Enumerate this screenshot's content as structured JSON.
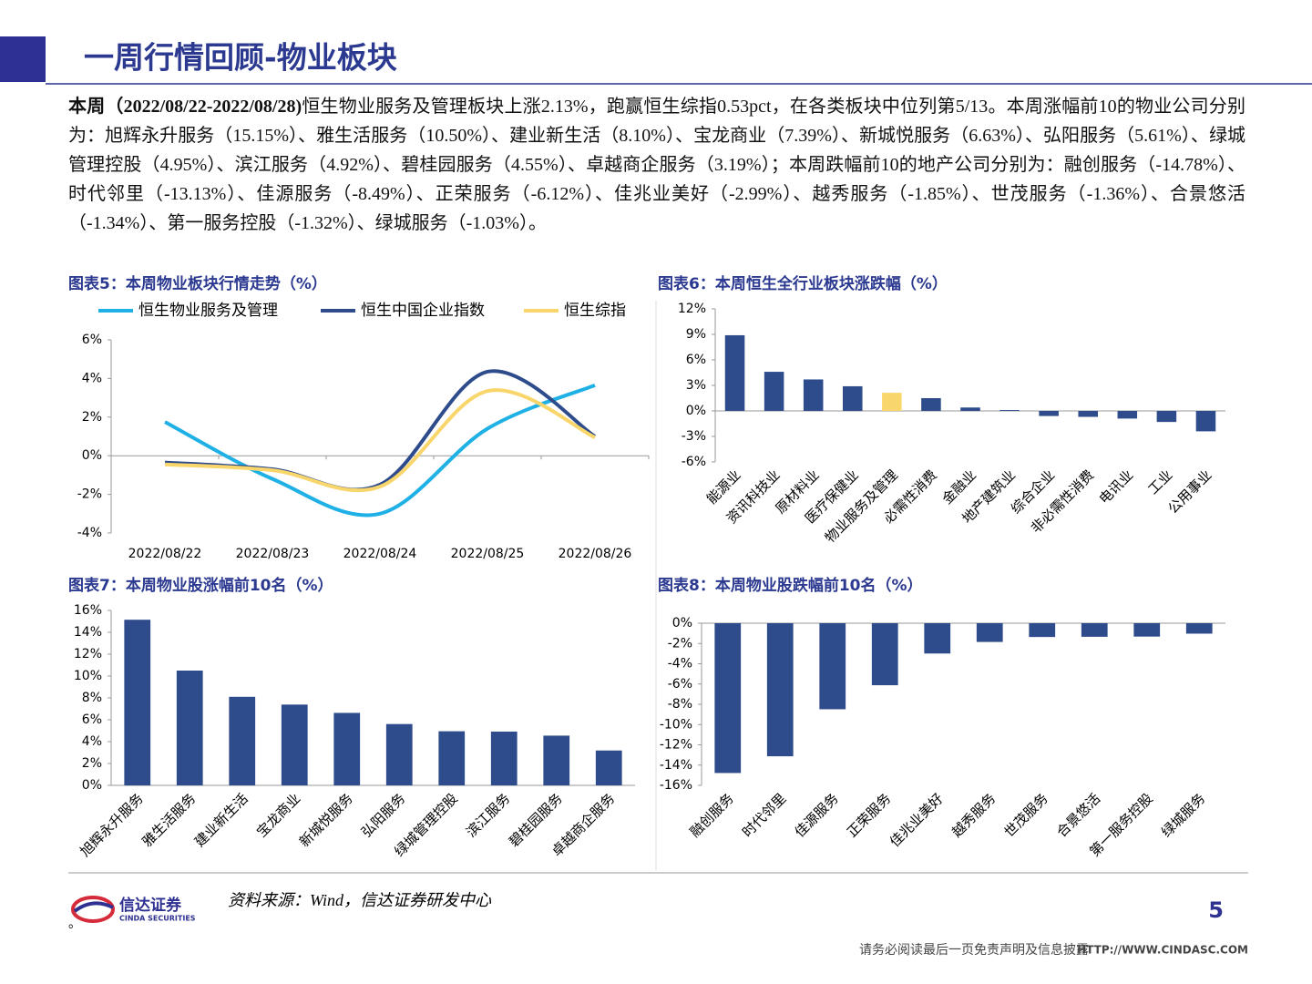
{
  "header": {
    "title": "一周行情回顾-物业板块"
  },
  "paragraph": {
    "lead": "本周（2022/08/22-2022/08/28)",
    "text": "恒生物业服务及管理板块上涨2.13%，跑赢恒生综指0.53pct，在各类板块中位列第5/13。本周涨幅前10的物业公司分别为：旭辉永升服务（15.15%）、雅生活服务（10.50%）、建业新生活（8.10%）、宝龙商业（7.39%）、新城悦服务（6.63%）、弘阳服务（5.61%）、绿城管理控股（4.95%）、滨江服务（4.92%）、碧桂园服务（4.55%）、卓越商企服务（3.19%）；本周跌幅前10的地产公司分别为：融创服务（-14.78%）、时代邻里（-13.13%）、佳源服务（-8.49%）、正荣服务（-6.12%）、佳兆业美好（-2.99%）、越秀服务（-1.85%）、世茂服务（-1.36%）、合景悠活（-1.34%）、第一服务控股（-1.32%）、绿城服务（-1.03%）。"
  },
  "chart_data": [
    {
      "type": "line",
      "title": "图表5：本周物业板块行情走势（%）",
      "categories": [
        "2022/08/22",
        "2022/08/23",
        "2022/08/24",
        "2022/08/25",
        "2022/08/26"
      ],
      "series": [
        {
          "name": "恒生物业服务及管理",
          "color": "#1fb1e6",
          "values": [
            1.75,
            -1.2,
            -3.0,
            1.4,
            3.65
          ]
        },
        {
          "name": "恒生中国企业指数",
          "color": "#2e4b8b",
          "values": [
            -0.35,
            -0.7,
            -1.5,
            4.35,
            1.0
          ]
        },
        {
          "name": "恒生综指",
          "color": "#f9d66b",
          "values": [
            -0.45,
            -0.75,
            -1.6,
            3.35,
            0.95
          ]
        }
      ],
      "ylim": [
        -4,
        6
      ],
      "yticks": [
        {
          "value": -4,
          "label": "-4%"
        },
        {
          "value": -2,
          "label": "-2%"
        },
        {
          "value": 0,
          "label": "0%"
        },
        {
          "value": 2,
          "label": "2%"
        },
        {
          "value": 4,
          "label": "4%"
        },
        {
          "value": 6,
          "label": "6%"
        }
      ],
      "legend": "top",
      "grid": false
    },
    {
      "type": "bar",
      "title": "图表6：本周恒生全行业板块涨跌幅（%）",
      "categories": [
        "能源业",
        "资讯科技业",
        "原材料业",
        "医疗保健业",
        "物业服务及管理",
        "必需性消费",
        "金融业",
        "地产建筑业",
        "综合企业",
        "非必需性消费",
        "电讯业",
        "工业",
        "公用事业"
      ],
      "values": [
        8.9,
        4.6,
        3.7,
        2.9,
        2.13,
        1.5,
        0.4,
        0.1,
        -0.6,
        -0.7,
        -0.9,
        -1.3,
        -2.4
      ],
      "colors": [
        "#2e4b8b",
        "#2e4b8b",
        "#2e4b8b",
        "#2e4b8b",
        "#f9d66b",
        "#2e4b8b",
        "#2e4b8b",
        "#2e4b8b",
        "#2e4b8b",
        "#2e4b8b",
        "#2e4b8b",
        "#2e4b8b",
        "#2e4b8b"
      ],
      "ylim": [
        -6,
        12
      ],
      "yticks": [
        {
          "value": -6,
          "label": "-6%"
        },
        {
          "value": -3,
          "label": "-3%"
        },
        {
          "value": 0,
          "label": "0%"
        },
        {
          "value": 3,
          "label": "3%"
        },
        {
          "value": 6,
          "label": "6%"
        },
        {
          "value": 9,
          "label": "9%"
        },
        {
          "value": 12,
          "label": "12%"
        }
      ],
      "grid": false
    },
    {
      "type": "bar",
      "title": "图表7：本周物业股涨幅前10名（%）",
      "categories": [
        "旭辉永升服务",
        "雅生活服务",
        "建业新生活",
        "宝龙商业",
        "新城悦服务",
        "弘阳服务",
        "绿城管理控股",
        "滨江服务",
        "碧桂园服务",
        "卓越商企服务"
      ],
      "values": [
        15.15,
        10.5,
        8.1,
        7.39,
        6.63,
        5.61,
        4.95,
        4.92,
        4.55,
        3.19
      ],
      "color": "#2e4b8b",
      "ylim": [
        0,
        16
      ],
      "yticks": [
        {
          "value": 0,
          "label": "0%"
        },
        {
          "value": 2,
          "label": "2%"
        },
        {
          "value": 4,
          "label": "4%"
        },
        {
          "value": 6,
          "label": "6%"
        },
        {
          "value": 8,
          "label": "8%"
        },
        {
          "value": 10,
          "label": "10%"
        },
        {
          "value": 12,
          "label": "12%"
        },
        {
          "value": 14,
          "label": "14%"
        },
        {
          "value": 16,
          "label": "16%"
        }
      ],
      "grid": false
    },
    {
      "type": "bar",
      "title": "图表8：本周物业股跌幅前10名（%）",
      "categories": [
        "融创服务",
        "时代邻里",
        "佳源服务",
        "正荣服务",
        "佳兆业美好",
        "越秀服务",
        "世茂服务",
        "合景悠活",
        "第一服务控股",
        "绿城服务"
      ],
      "values": [
        -14.78,
        -13.13,
        -8.49,
        -6.12,
        -2.99,
        -1.85,
        -1.36,
        -1.34,
        -1.32,
        -1.03
      ],
      "color": "#2e4b8b",
      "ylim": [
        -16,
        0
      ],
      "yticks": [
        {
          "value": -16,
          "label": "-16%"
        },
        {
          "value": -14,
          "label": "-14%"
        },
        {
          "value": -12,
          "label": "-12%"
        },
        {
          "value": -10,
          "label": "-10%"
        },
        {
          "value": -8,
          "label": "-8%"
        },
        {
          "value": -6,
          "label": "-6%"
        },
        {
          "value": -4,
          "label": "-4%"
        },
        {
          "value": -2,
          "label": "-2%"
        },
        {
          "value": 0,
          "label": "0%"
        }
      ],
      "grid": false
    }
  ],
  "source": "资料来源：Wind，信达证券研发中心",
  "logo": {
    "name": "信达证券",
    "english": "CINDA SECURITIES"
  },
  "stray_mark": "。",
  "page_number": "5",
  "footer": {
    "disclaimer": "请务必阅读最后一页免责声明及信息披露",
    "url": "HTTP://WWW.CINDASC.COM"
  }
}
